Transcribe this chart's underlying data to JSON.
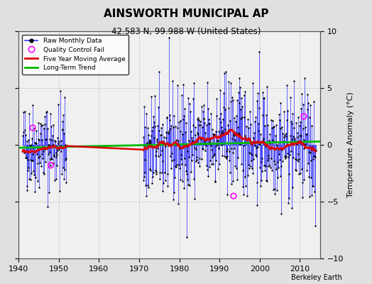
{
  "title": "AINSWORTH MUNICIPAL AP",
  "subtitle": "42.583 N, 99.988 W (United States)",
  "ylabel": "Temperature Anomaly (°C)",
  "credit": "Berkeley Earth",
  "xlim": [
    1940,
    2015
  ],
  "ylim": [
    -10,
    10
  ],
  "yticks": [
    -10,
    -5,
    0,
    5,
    10
  ],
  "xticks": [
    1940,
    1950,
    1960,
    1970,
    1980,
    1990,
    2000,
    2010
  ],
  "bg_color": "#e0e0e0",
  "plot_bg_color": "#f0f0f0",
  "raw_color": "#3333ff",
  "moving_avg_color": "#dd0000",
  "trend_color": "#00bb00",
  "qc_fail_color": "#ff00ff",
  "seed": 42
}
